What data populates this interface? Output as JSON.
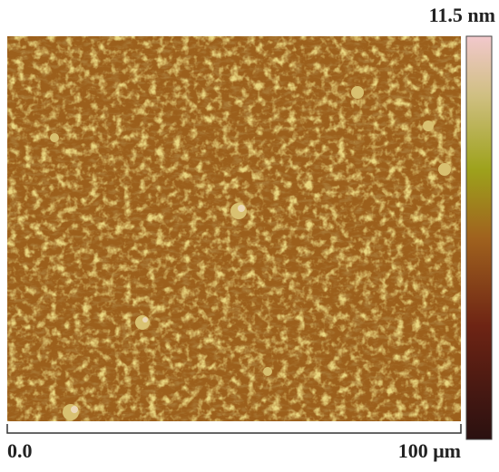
{
  "colorbar": {
    "max_label": "11.5 nm"
  },
  "scale": {
    "start_label": "0.0",
    "end_label": "100 μm"
  }
}
